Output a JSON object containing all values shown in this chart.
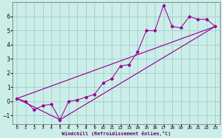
{
  "title": "",
  "xlabel": "Windchill (Refroidissement éolien,°C)",
  "bg_color": "#cceee8",
  "grid_color": "#99cccc",
  "line_color": "#990099",
  "xlim": [
    -0.5,
    23.5
  ],
  "ylim": [
    -1.6,
    7.0
  ],
  "xticks": [
    0,
    1,
    2,
    3,
    4,
    5,
    6,
    7,
    8,
    9,
    10,
    11,
    12,
    13,
    14,
    15,
    16,
    17,
    18,
    19,
    20,
    21,
    22,
    23
  ],
  "yticks": [
    -1,
    0,
    1,
    2,
    3,
    4,
    5,
    6
  ],
  "data_x": [
    0,
    1,
    2,
    3,
    4,
    5,
    6,
    7,
    8,
    9,
    10,
    11,
    12,
    13,
    14,
    15,
    16,
    17,
    18,
    19,
    20,
    21,
    22,
    23
  ],
  "data_y": [
    0.2,
    0.0,
    -0.6,
    -0.3,
    -0.2,
    -1.3,
    0.0,
    0.1,
    0.3,
    0.5,
    1.3,
    1.6,
    2.5,
    2.6,
    3.5,
    5.0,
    5.0,
    6.8,
    5.3,
    5.2,
    6.0,
    5.8,
    5.8,
    5.3
  ],
  "line1_x": [
    0,
    23
  ],
  "line1_y": [
    0.2,
    5.3
  ],
  "line2_x": [
    0,
    5,
    23
  ],
  "line2_y": [
    0.2,
    -1.3,
    5.3
  ]
}
